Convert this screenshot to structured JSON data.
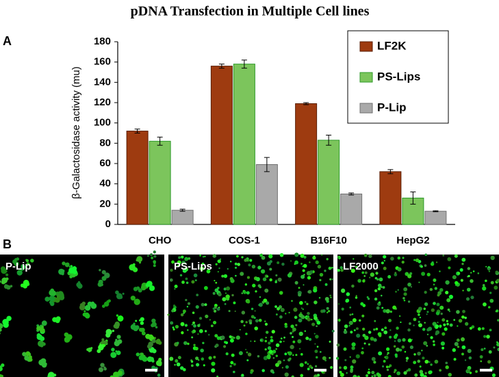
{
  "chart_data": {
    "type": "bar",
    "title": "pDNA Transfection in Multiple Cell lines",
    "y_label": "β-Galactosidase activity (mu)",
    "categories": [
      "CHO",
      "COS-1",
      "B16F10",
      "HepG2"
    ],
    "series": [
      {
        "name": "LF2K",
        "color": "#9e3b10",
        "stroke": "#5a1e05",
        "values": [
          92,
          156,
          119,
          52
        ],
        "errors": [
          2,
          2,
          1,
          2
        ]
      },
      {
        "name": "PS-Lips",
        "color": "#7cc55c",
        "stroke": "#2e9a2a",
        "values": [
          82,
          158,
          83,
          26
        ],
        "errors": [
          4,
          4,
          5,
          6
        ]
      },
      {
        "name": "P-Lip",
        "color": "#a9a9a9",
        "stroke": "#707070",
        "values": [
          14,
          59,
          30,
          13
        ],
        "errors": [
          1,
          7,
          1,
          0.5
        ]
      }
    ],
    "ylim": [
      0,
      180
    ],
    "yticks": [
      0,
      20,
      40,
      60,
      80,
      100,
      120,
      140,
      160,
      180
    ]
  },
  "panel_labels": [
    "A",
    "B"
  ],
  "images": [
    {
      "label": "P-Lip"
    },
    {
      "label": "PS-Lips"
    },
    {
      "label": "LF2000"
    }
  ]
}
